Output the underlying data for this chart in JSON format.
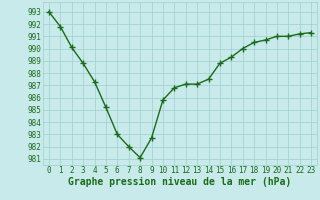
{
  "x": [
    0,
    1,
    2,
    3,
    4,
    5,
    6,
    7,
    8,
    9,
    10,
    11,
    12,
    13,
    14,
    15,
    16,
    17,
    18,
    19,
    20,
    21,
    22,
    23
  ],
  "y": [
    993,
    991.8,
    990.1,
    988.8,
    987.3,
    985.2,
    983.0,
    982.0,
    981.1,
    982.7,
    985.8,
    986.8,
    987.1,
    987.1,
    987.5,
    988.8,
    989.3,
    990.0,
    990.5,
    990.7,
    991.0,
    991.0,
    991.2,
    991.3
  ],
  "line_color": "#1a6b1a",
  "marker": "+",
  "marker_size": 4,
  "bg_color": "#c8eaea",
  "grid_color": "#9ecece",
  "xlabel": "Graphe pression niveau de la mer (hPa)",
  "xlabel_fontsize": 7,
  "ytick_labels": [
    "981",
    "982",
    "983",
    "984",
    "985",
    "986",
    "987",
    "988",
    "989",
    "990",
    "991",
    "992",
    "993"
  ],
  "ytick_values": [
    981,
    982,
    983,
    984,
    985,
    986,
    987,
    988,
    989,
    990,
    991,
    992,
    993
  ],
  "ylim": [
    980.5,
    993.8
  ],
  "xlim": [
    -0.5,
    23.5
  ],
  "tick_color": "#1a6b1a",
  "tick_fontsize": 5.5,
  "line_width": 1.0
}
